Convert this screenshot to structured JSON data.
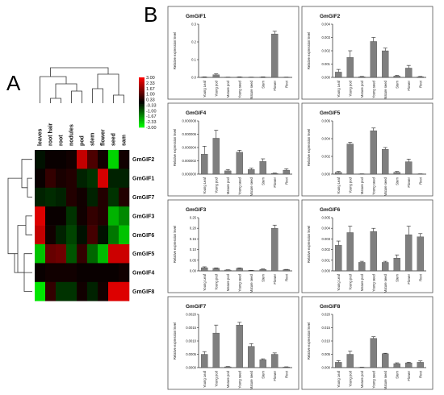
{
  "panels": {
    "a": "A",
    "b": "B"
  },
  "heatmap": {
    "columns": [
      "leaves",
      "root hair",
      "root",
      "nodules",
      "pod",
      "stem",
      "flower",
      "seed",
      "sam"
    ],
    "rows": [
      "GmGIF2",
      "GmGIF1",
      "GmGIF7",
      "GmGIF3",
      "GmGIF6",
      "GmGIF5",
      "GmGIF4",
      "GmGIF8"
    ],
    "values": [
      [
        -0.2,
        0.1,
        0.1,
        0.2,
        2.3,
        0.9,
        0.2,
        -2.5,
        0.2
      ],
      [
        0.1,
        0.6,
        0.3,
        0.4,
        -0.4,
        -0.6,
        2.5,
        -0.4,
        -0.4
      ],
      [
        -0.4,
        -0.5,
        -0.4,
        0.4,
        0.2,
        -0.4,
        0.4,
        -0.6,
        0.4
      ],
      [
        2.6,
        0.1,
        0.1,
        -0.6,
        0.2,
        0.6,
        0.4,
        -2.1,
        -1.6
      ],
      [
        2.3,
        0.2,
        -0.4,
        -0.8,
        -0.2,
        0.8,
        -0.2,
        -1.4,
        -2.3
      ],
      [
        -2.3,
        1.2,
        1.3,
        -1.0,
        0.6,
        -1.2,
        -2.2,
        2.4,
        2.4
      ],
      [
        0.1,
        0.2,
        0.2,
        0.2,
        0.1,
        0.1,
        0.1,
        0.1,
        0.2
      ],
      [
        -2.7,
        0.6,
        -0.6,
        -0.6,
        0.2,
        -0.4,
        0.2,
        2.6,
        2.6
      ]
    ],
    "legend_ticks": [
      "3.00",
      "2.33",
      "1.67",
      "1.00",
      "0.33",
      "-0.33",
      "-1.00",
      "-1.67",
      "-2.33",
      "-3.00"
    ],
    "colors": {
      "high": "#ff0000",
      "mid": "#000000",
      "low": "#00ff00"
    }
  },
  "chart_data": [
    {
      "type": "bar",
      "title": "GmGIF1",
      "ylabel": "Relative expression level",
      "categories": [
        "Young Leaf",
        "Young pod",
        "Mature pod",
        "Young seed",
        "Mature seed",
        "Stem",
        "Flower",
        "Root"
      ],
      "values": [
        0.002,
        0.015,
        0.001,
        0.002,
        0.001,
        0.002,
        0.245,
        0.001
      ],
      "errors": [
        0.001,
        0.005,
        0.0005,
        0.001,
        0.0005,
        0.001,
        0.015,
        0.0005
      ],
      "ylim": [
        0,
        0.3
      ],
      "yticks": [
        "0.0",
        "0.1",
        "0.2",
        "0.3"
      ]
    },
    {
      "type": "bar",
      "title": "GmGIF2",
      "ylabel": "Relative expression level",
      "categories": [
        "Young Leaf",
        "Young pod",
        "Mature pod",
        "Young seed",
        "Mature seed",
        "Stem",
        "Flower",
        "Root"
      ],
      "values": [
        0.0004,
        0.0015,
        5e-05,
        0.0027,
        0.002,
        0.0001,
        0.0007,
        5e-05
      ],
      "errors": [
        0.0002,
        0.0005,
        2e-05,
        0.0003,
        0.0002,
        5e-05,
        0.0002,
        2e-05
      ],
      "ylim": [
        0,
        0.004
      ],
      "yticks": [
        "0.000",
        "0.001",
        "0.002",
        "0.003",
        "0.004"
      ]
    },
    {
      "type": "bar",
      "title": "GmGIF4",
      "ylabel": "Relative expression level",
      "categories": [
        "Young Leaf",
        "Young pod",
        "Mature pod",
        "Young seed",
        "Mature seed",
        "Stem",
        "Flower",
        "Root"
      ],
      "values": [
        3e-06,
        5.4e-06,
        5e-07,
        3.3e-06,
        7e-07,
        1.9e-06,
        1e-07,
        6e-07
      ],
      "errors": [
        1.2e-06,
        1.2e-06,
        2e-07,
        3e-07,
        2e-07,
        4e-07,
        5e-08,
        2e-07
      ],
      "ylim": [
        0,
        8e-06
      ],
      "yticks": [
        "0.000000",
        "0.000002",
        "0.000004",
        "0.000006",
        "0.000008"
      ]
    },
    {
      "type": "bar",
      "title": "GmGIF5",
      "ylabel": "Relative expression level",
      "categories": [
        "Young Leaf",
        "Young pod",
        "Mature pod",
        "Young seed",
        "Mature seed",
        "Stem",
        "Flower",
        "Root"
      ],
      "values": [
        0.0002,
        0.0034,
        2e-05,
        0.0049,
        0.0028,
        0.0002,
        0.0014,
        2e-05
      ],
      "errors": [
        0.0001,
        0.0002,
        1e-05,
        0.0003,
        0.0002,
        0.0001,
        0.0003,
        1e-05
      ],
      "ylim": [
        0,
        0.006
      ],
      "yticks": [
        "0.000",
        "0.002",
        "0.004",
        "0.006"
      ]
    },
    {
      "type": "bar",
      "title": "GmGIF3",
      "ylabel": "Relative expression level",
      "categories": [
        "Young Leaf",
        "Young pod",
        "Mature pod",
        "Young seed",
        "Mature seed",
        "Stem",
        "Flower",
        "Root"
      ],
      "values": [
        0.015,
        0.012,
        0.004,
        0.012,
        0.002,
        0.007,
        0.2,
        0.006
      ],
      "errors": [
        0.004,
        0.002,
        0.001,
        0.002,
        0.0005,
        0.002,
        0.015,
        0.001
      ],
      "ylim": [
        0,
        0.25
      ],
      "yticks": [
        "0.00",
        "0.05",
        "0.10",
        "0.15",
        "0.20",
        "0.25"
      ]
    },
    {
      "type": "bar",
      "title": "GmGIF6",
      "ylabel": "Relative expression level",
      "categories": [
        "Young Leaf",
        "Young pod",
        "Mature pod",
        "Young seed",
        "Mature seed",
        "Stem",
        "Flower",
        "Root"
      ],
      "values": [
        0.0024,
        0.0036,
        0.0008,
        0.0037,
        0.0008,
        0.0012,
        0.0034,
        0.0032
      ],
      "errors": [
        0.0004,
        0.0006,
        0.0001,
        0.0003,
        0.0001,
        0.0003,
        0.0008,
        0.0003
      ],
      "ylim": [
        0,
        0.005
      ],
      "yticks": [
        "0.000",
        "0.001",
        "0.002",
        "0.003",
        "0.004",
        "0.005"
      ]
    },
    {
      "type": "bar",
      "title": "GmGIF7",
      "ylabel": "Relative expression level",
      "categories": [
        "Young Leaf",
        "Young pod",
        "Mature pod",
        "Young seed",
        "Mature seed",
        "Stem",
        "Flower",
        "Root"
      ],
      "values": [
        0.0005,
        0.0013,
        3e-05,
        0.0016,
        0.0008,
        0.0003,
        0.0005,
        2e-05
      ],
      "errors": [
        0.0001,
        0.0003,
        1e-05,
        0.0001,
        0.0001,
        3e-05,
        5e-05,
        1e-05
      ],
      "ylim": [
        0,
        0.002
      ],
      "yticks": [
        "0.0000",
        "0.0005",
        "0.0010",
        "0.0015",
        "0.0020"
      ]
    },
    {
      "type": "bar",
      "title": "GmGIF8",
      "ylabel": "Relative expression level",
      "categories": [
        "Young Leaf",
        "Young pod",
        "Mature pod",
        "Young seed",
        "Mature seed",
        "Stem",
        "Flower",
        "Root"
      ],
      "values": [
        0.002,
        0.005,
        0.0001,
        0.011,
        0.0052,
        0.0015,
        0.0018,
        0.002
      ],
      "errors": [
        0.0006,
        0.0012,
        5e-05,
        0.0006,
        0.0002,
        0.0003,
        0.0002,
        0.0005
      ],
      "ylim": [
        0,
        0.02
      ],
      "yticks": [
        "0.000",
        "0.005",
        "0.010",
        "0.015",
        "0.020"
      ]
    }
  ]
}
